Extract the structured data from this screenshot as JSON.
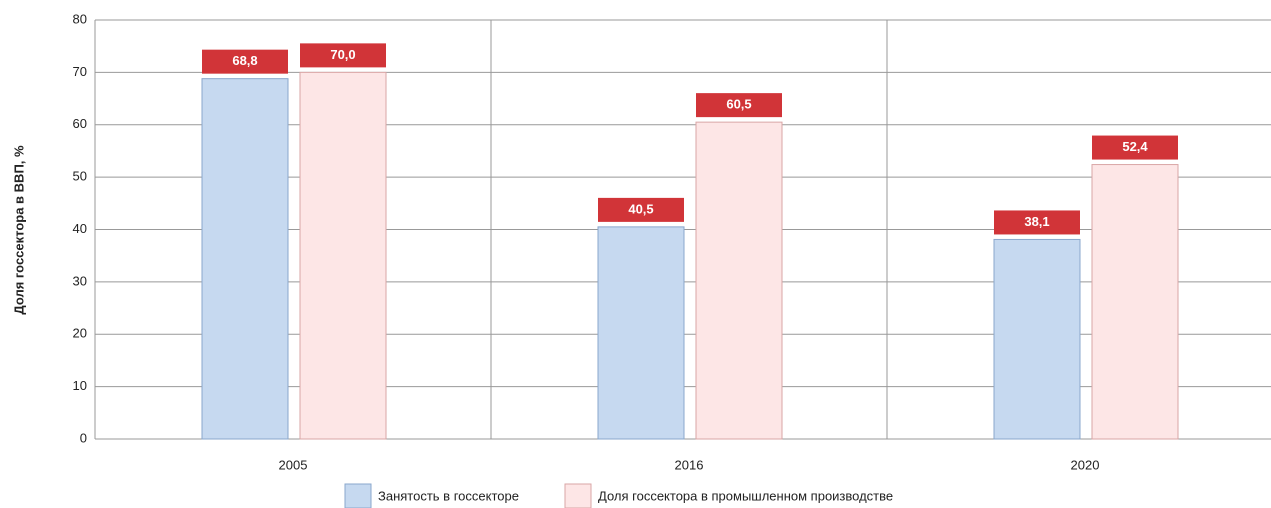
{
  "chart_data": {
    "type": "bar",
    "y_label": "Доля госсектора в ВВП, %",
    "categories": [
      "2005",
      "2016",
      "2020"
    ],
    "series": [
      {
        "name": "Занятость в госсекторе",
        "color": "#c6d9f0",
        "values": [
          68.8,
          40.5,
          38.1
        ],
        "value_labels": [
          "68,8",
          "40,5",
          "38,1"
        ]
      },
      {
        "name": "Доля госсектора в промышленном производстве",
        "color": "#fde6e6",
        "values": [
          70.0,
          60.5,
          52.4
        ],
        "value_labels": [
          "70,0",
          "60,5",
          "52,4"
        ]
      }
    ],
    "label_color": "#d13438",
    "ylim": [
      0,
      80
    ],
    "yticks": [
      0,
      10,
      20,
      30,
      40,
      50,
      60,
      70,
      80
    ],
    "grid": true
  }
}
